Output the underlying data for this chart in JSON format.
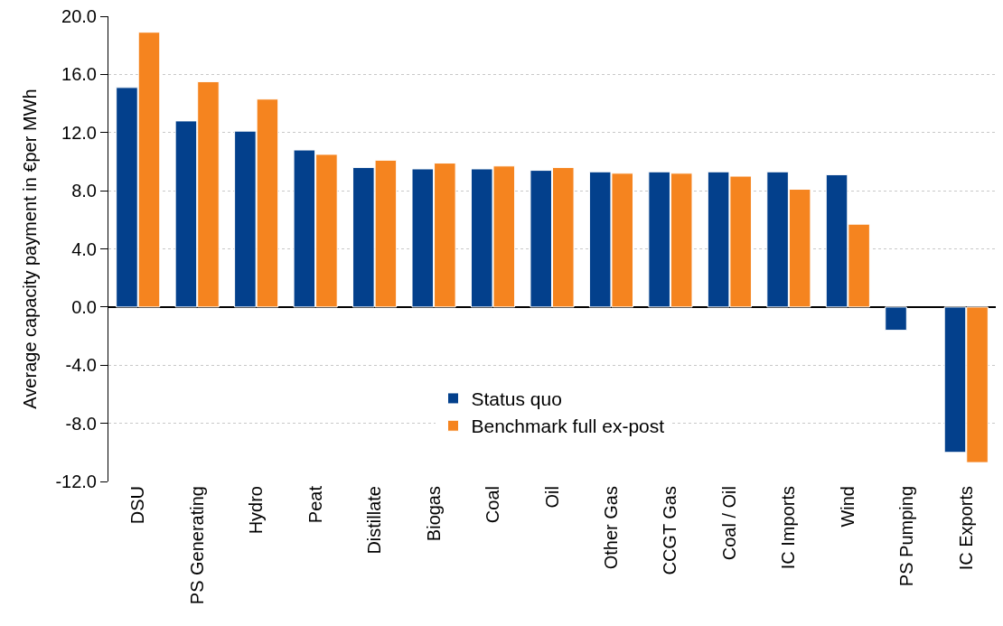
{
  "chart_data": {
    "type": "bar",
    "ylabel": "Average capacity payment in €per MWh",
    "categories": [
      "DSU",
      "PS Generating",
      "Hydro",
      "Peat",
      "Distillate",
      "Biogas",
      "Coal",
      "Oil",
      "Other Gas",
      "CCGT Gas",
      "Coal / Oil",
      "IC Imports",
      "Wind",
      "PS Pumping",
      "IC Exports"
    ],
    "series": [
      {
        "name": "Status quo",
        "color": "#03408c",
        "values": [
          15.1,
          12.8,
          12.1,
          10.8,
          9.6,
          9.5,
          9.5,
          9.4,
          9.3,
          9.3,
          9.3,
          9.3,
          9.1,
          -1.6,
          -10.0
        ]
      },
      {
        "name": "Benchmark full ex-post",
        "color": "#f5841f",
        "values": [
          18.9,
          15.5,
          14.3,
          10.5,
          10.1,
          9.9,
          9.7,
          9.6,
          9.2,
          9.2,
          9.0,
          8.1,
          5.7,
          null,
          -10.7
        ]
      }
    ],
    "ylim": [
      -12,
      20
    ],
    "yticks": [
      {
        "value": -12,
        "label": "-12.0"
      },
      {
        "value": -8,
        "label": "-8.0"
      },
      {
        "value": -4,
        "label": "-4.0"
      },
      {
        "value": 0,
        "label": "0.0"
      },
      {
        "value": 4,
        "label": "4.0"
      },
      {
        "value": 8,
        "label": "8.0"
      },
      {
        "value": 12,
        "label": "12.0"
      },
      {
        "value": 16,
        "label": "16.0"
      },
      {
        "value": 20,
        "label": "20.0"
      }
    ],
    "grid": "y",
    "legend": "bottom"
  }
}
